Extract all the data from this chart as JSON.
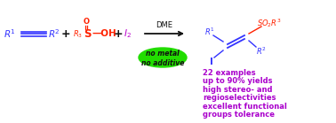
{
  "bg_color": "#ffffff",
  "blue": "#3333ff",
  "red": "#ff2200",
  "purple": "#9900bb",
  "green_ellipse": "#22dd00",
  "black": "#111111",
  "iodine_color": "#bb00cc",
  "bullet_color": "#aa00cc",
  "dme_text": "DME",
  "bullet1": "22 examples",
  "bullet2": "up to 90% yields",
  "bullet3": "high stereo- and",
  "bullet4": "regioselectivities",
  "bullet5": "excellent functional",
  "bullet6": "groups tolerance"
}
